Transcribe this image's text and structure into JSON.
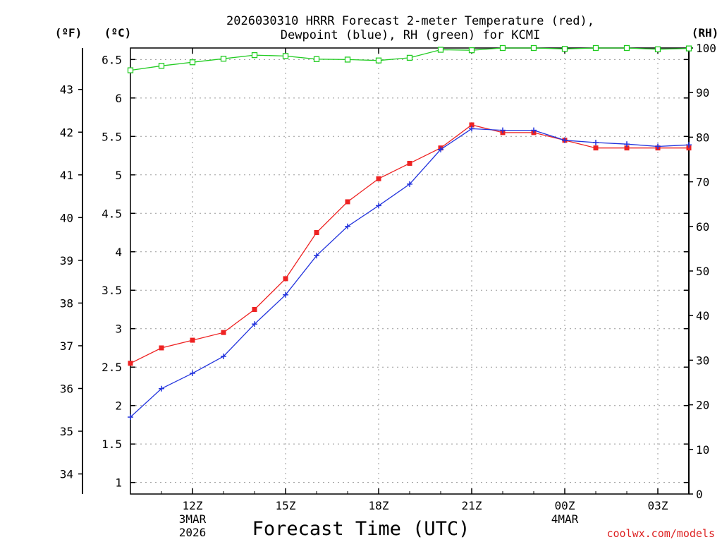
{
  "chart_data": {
    "type": "line",
    "title_line1": "2026030310 HRRR Forecast 2-meter Temperature (red),",
    "title_line2": "Dewpoint (blue), RH (green) for KCMI",
    "xlabel": "Forecast Time (UTC)",
    "credit": "coolwx.com/models",
    "unit_f": "(ºF)",
    "unit_c": "(ºC)",
    "unit_rh": "(RH)",
    "x_hours": [
      10,
      11,
      12,
      13,
      14,
      15,
      16,
      17,
      18,
      19,
      20,
      21,
      22,
      23,
      24,
      25,
      26,
      27,
      28
    ],
    "xlim": [
      10,
      28
    ],
    "celsius_lim": [
      0.85,
      6.65
    ],
    "rh_lim": [
      0,
      100
    ],
    "celsius_ticks": [
      "1",
      "1.5",
      "2",
      "2.5",
      "3",
      "3.5",
      "4",
      "4.5",
      "5",
      "5.5",
      "6",
      "6.5"
    ],
    "fahrenheit_ticks": [
      "34",
      "35",
      "36",
      "37",
      "38",
      "39",
      "40",
      "41",
      "42",
      "43"
    ],
    "rh_ticks": [
      "0",
      "10",
      "20",
      "30",
      "40",
      "50",
      "60",
      "70",
      "80",
      "90",
      "100"
    ],
    "x_ticks": [
      {
        "hour": 12,
        "label": "12Z",
        "sub1": "3MAR",
        "sub2": "2026"
      },
      {
        "hour": 15,
        "label": "15Z",
        "sub1": "",
        "sub2": ""
      },
      {
        "hour": 18,
        "label": "18Z",
        "sub1": "",
        "sub2": ""
      },
      {
        "hour": 21,
        "label": "21Z",
        "sub1": "",
        "sub2": ""
      },
      {
        "hour": 24,
        "label": "00Z",
        "sub1": "4MAR",
        "sub2": ""
      },
      {
        "hour": 27,
        "label": "03Z",
        "sub1": "",
        "sub2": ""
      }
    ],
    "series": [
      {
        "name": "Temperature",
        "color": "#ee2222",
        "marker": "filled-square",
        "values": [
          2.55,
          2.75,
          2.85,
          2.95,
          3.25,
          3.65,
          4.25,
          4.65,
          4.95,
          5.15,
          5.35,
          5.65,
          5.55,
          5.55,
          5.45,
          5.35,
          5.35,
          5.35,
          5.35
        ]
      },
      {
        "name": "Dewpoint",
        "color": "#2233dd",
        "marker": "plus",
        "values": [
          1.85,
          2.22,
          2.42,
          2.64,
          3.06,
          3.44,
          3.95,
          4.33,
          4.6,
          4.88,
          5.33,
          5.6,
          5.58,
          5.58,
          5.45,
          5.42,
          5.4,
          5.37,
          5.39
        ]
      },
      {
        "name": "RH",
        "color": "#22cc22",
        "marker": "open-square",
        "values": [
          95,
          96,
          96.8,
          97.6,
          98.4,
          98.2,
          97.5,
          97.4,
          97.2,
          97.8,
          99.6,
          99.5,
          100,
          100,
          99.8,
          100,
          100,
          99.7,
          99.9
        ]
      }
    ]
  }
}
